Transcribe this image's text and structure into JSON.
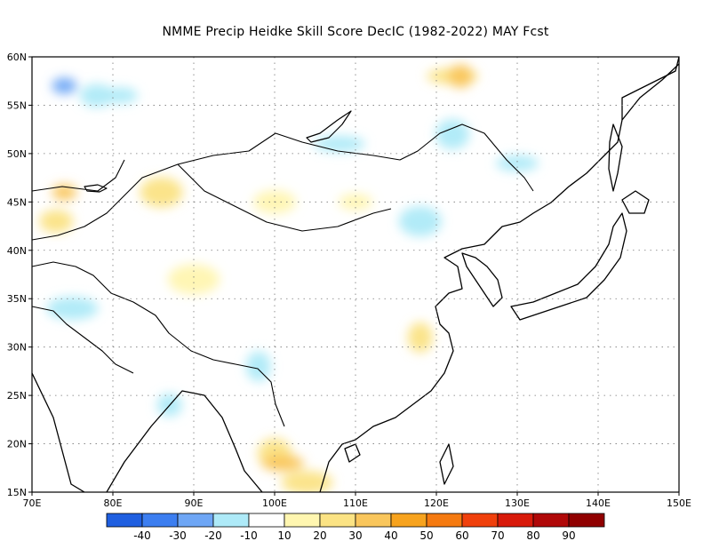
{
  "title": "NMME Precip Heidke Skill Score DecIC (1982-2022) MAY Fcst",
  "map": {
    "lon_range": [
      70,
      150
    ],
    "lat_range": [
      15,
      60
    ],
    "lat_ticks": [
      "15N",
      "20N",
      "25N",
      "30N",
      "35N",
      "40N",
      "45N",
      "50N",
      "55N",
      "60N"
    ],
    "lon_ticks": [
      "70E",
      "80E",
      "90E",
      "100E",
      "110E",
      "120E",
      "130E",
      "140E",
      "150E"
    ],
    "gridlines": "dotted"
  },
  "colorbar": {
    "colors": [
      "#1f5fe0",
      "#3c7ef0",
      "#6ea6f5",
      "#aeeaf8",
      "#ffffff",
      "#fff6b0",
      "#fbe384",
      "#f9c65c",
      "#f7a31e",
      "#f57a10",
      "#f0400c",
      "#d81a0a",
      "#b00808",
      "#900000"
    ],
    "labels": [
      "-40",
      "-30",
      "-20",
      "-10",
      "10",
      "20",
      "30",
      "40",
      "50",
      "60",
      "70",
      "80",
      "90"
    ]
  },
  "patches": [
    {
      "kind": "pos-30",
      "lon": 74,
      "lat": 46
    },
    {
      "kind": "pos-20",
      "lon": 73,
      "lat": 43
    },
    {
      "kind": "pos-20",
      "lon": 86,
      "lat": 46
    },
    {
      "kind": "pos-20",
      "lon": 122,
      "lat": 58
    },
    {
      "kind": "pos-30",
      "lon": 123,
      "lat": 58
    },
    {
      "kind": "pos-20",
      "lon": 100,
      "lat": 19
    },
    {
      "kind": "pos-30",
      "lon": 101,
      "lat": 18
    },
    {
      "kind": "pos-20",
      "lon": 104,
      "lat": 16
    },
    {
      "kind": "pos-20",
      "lon": 118,
      "lat": 31
    },
    {
      "kind": "pos-10",
      "lon": 110,
      "lat": 45
    },
    {
      "kind": "pos-10",
      "lon": 100,
      "lat": 45
    },
    {
      "kind": "pos-10",
      "lon": 90,
      "lat": 37
    },
    {
      "kind": "neg-20",
      "lon": 74,
      "lat": 57
    },
    {
      "kind": "neg-10",
      "lon": 78,
      "lat": 56
    },
    {
      "kind": "neg-10",
      "lon": 118,
      "lat": 43
    },
    {
      "kind": "neg-10",
      "lon": 108,
      "lat": 51
    },
    {
      "kind": "neg-10",
      "lon": 87,
      "lat": 24
    },
    {
      "kind": "neg-10",
      "lon": 122,
      "lat": 52
    },
    {
      "kind": "neg-10",
      "lon": 130,
      "lat": 49
    },
    {
      "kind": "neg-10",
      "lon": 75,
      "lat": 34
    },
    {
      "kind": "neg-10",
      "lon": 98,
      "lat": 28
    },
    {
      "kind": "neg-10",
      "lon": 81,
      "lat": 56
    }
  ]
}
